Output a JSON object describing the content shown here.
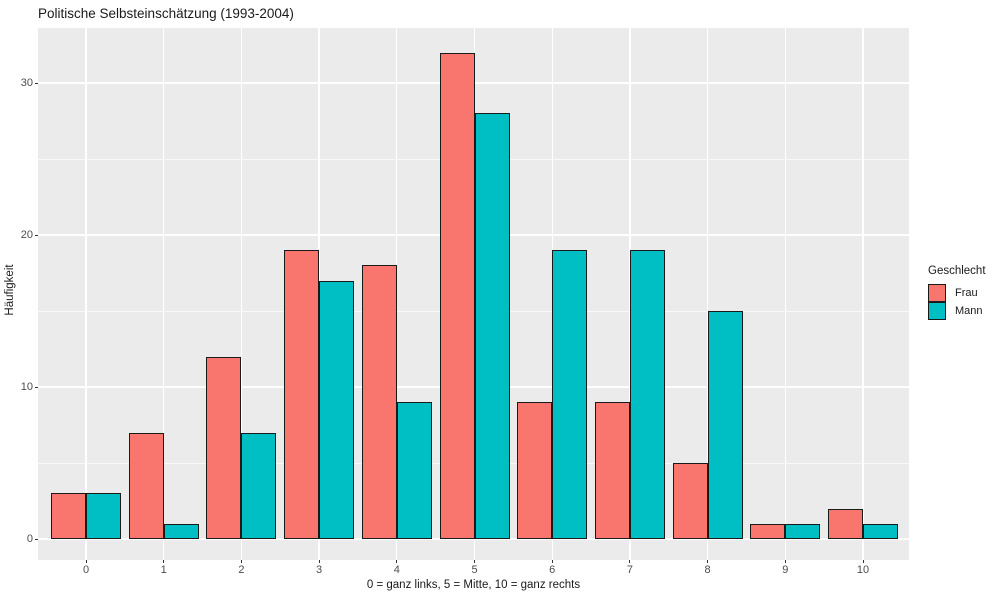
{
  "chart_data": {
    "type": "bar",
    "title": "Politische Selbsteinschätzung (1993-2004)",
    "xlabel": "0 = ganz links, 5 = Mitte, 10 = ganz rechts",
    "ylabel": "Häufigkeit",
    "categories": [
      "0",
      "1",
      "2",
      "3",
      "4",
      "5",
      "6",
      "7",
      "8",
      "9",
      "10"
    ],
    "series": [
      {
        "name": "Frau",
        "color": "#F8766D",
        "values": [
          3,
          7,
          12,
          19,
          18,
          32,
          9,
          9,
          5,
          1,
          2
        ]
      },
      {
        "name": "Mann",
        "color": "#00BFC4",
        "values": [
          3,
          1,
          7,
          17,
          9,
          28,
          19,
          19,
          15,
          1,
          1
        ]
      }
    ],
    "legend": {
      "title": "Geschlecht",
      "position": "right"
    },
    "y_axis": {
      "ticks": [
        0,
        10,
        20,
        30
      ],
      "minor_ticks": [
        5,
        15,
        25
      ],
      "lim": [
        0,
        33.6
      ],
      "grid": true
    },
    "x_axis": {
      "grid": true
    },
    "style": {
      "panel_bg": "#EBEBEB",
      "grid_color": "#FFFFFF",
      "bar_border": "#1A1A1A",
      "tick_label_color": "#4D4D4D"
    }
  }
}
